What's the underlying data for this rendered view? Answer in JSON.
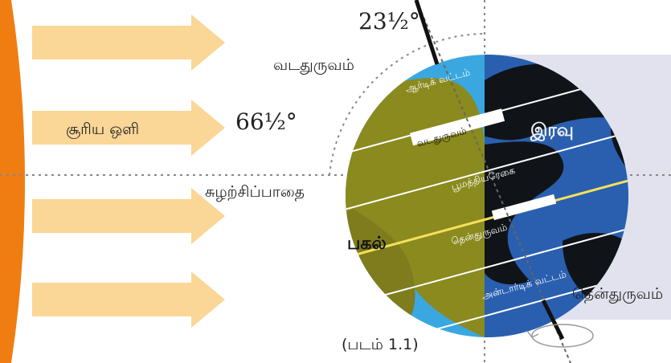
{
  "figure": {
    "tilt_angle": "23½°",
    "sun_angle": "66½°",
    "sunlight": "சூரிய ஒளி",
    "north_pole_label": "வடதுருவம்",
    "south_pole_label": "தென்துருவம்",
    "orbit_label": "சுழற்சிப்பாதை",
    "day": "பகல்",
    "night": "இரவு",
    "arctic_circle": "ஆர்டிக் வட்டம்",
    "tropic_cancer": "வடதுருவம்",
    "equator": "பூமத்தியரேகை",
    "tropic_capricorn": "தென்துருவம்",
    "antarctic_circle": "அன்டார்டிக் வட்டம்",
    "caption": "(படம் 1.1)"
  },
  "colors": {
    "sun": "#f07d12",
    "arrow": "#fad697",
    "ocean": "#3aa7e0",
    "land": "#8a8a1e",
    "night_ocean": "#2a5fb0",
    "night_land": "#101418",
    "shadow_panel": "#e2e2ee"
  }
}
